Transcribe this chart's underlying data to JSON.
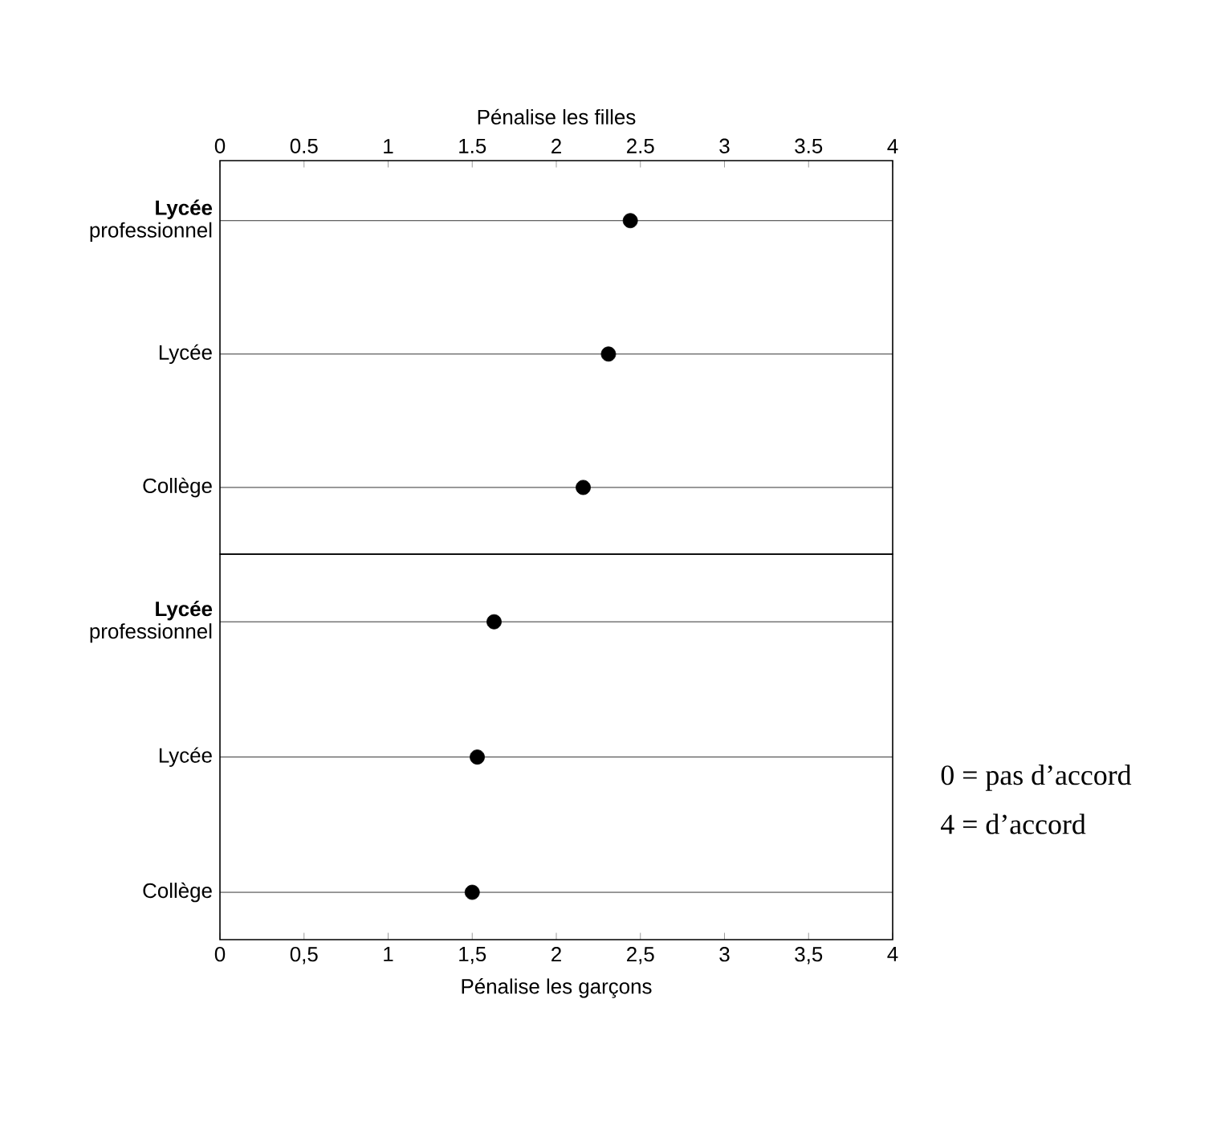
{
  "chart_data": [
    {
      "type": "scatter",
      "xlabel": "Pénalise les filles",
      "categories": [
        "**Lycée** professionnel",
        "Lycée",
        "Collège"
      ],
      "series": [
        {
          "color": "#000000",
          "values": [
            2.44,
            2.31,
            2.16
          ]
        }
      ],
      "xlim": [
        0,
        4
      ],
      "xticks": [
        0,
        {
          "value": 0.5,
          "label": "0.5"
        },
        1,
        {
          "value": 1.5,
          "label": "1.5"
        },
        2,
        {
          "value": 2.5,
          "label": "2.5"
        },
        3,
        {
          "value": 3.5,
          "label": "3.5"
        },
        4
      ],
      "grid": "y",
      "marker": "circle",
      "orientation": "horizontal"
    },
    {
      "type": "scatter",
      "xlabel": "Pénalise les garçons",
      "categories": [
        "**Lycée** professionnel",
        "Lycée",
        "Collège"
      ],
      "series": [
        {
          "color": "#000000",
          "values": [
            1.63,
            1.53,
            1.5
          ]
        }
      ],
      "xlim": [
        0,
        4
      ],
      "xticks": [
        0,
        {
          "value": 0.5,
          "label": "0,5"
        },
        1,
        {
          "value": 1.5,
          "label": "1,5"
        },
        2,
        {
          "value": 2.5,
          "label": "2,5"
        },
        3,
        {
          "value": 3.5,
          "label": "3,5"
        },
        4
      ],
      "grid": "y",
      "marker": "circle",
      "orientation": "horizontal",
      "annotations": [
        "0 = pas d’accord",
        "4 = d’accord"
      ]
    }
  ]
}
